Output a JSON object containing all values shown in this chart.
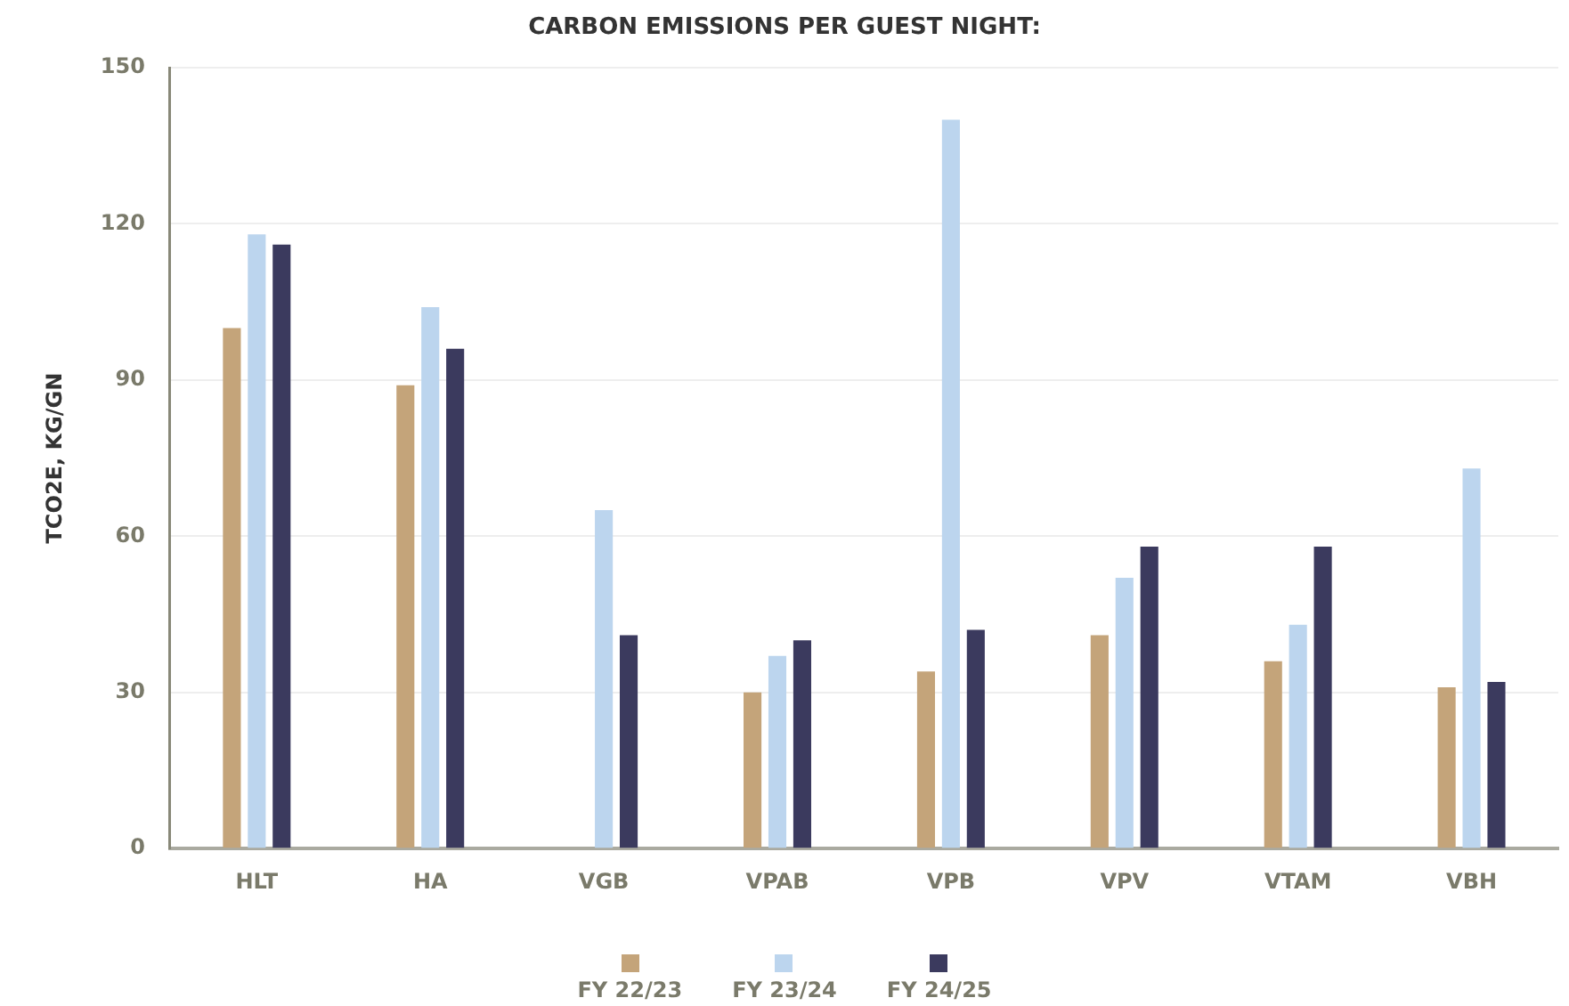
{
  "chart_data": {
    "type": "bar",
    "title": "CARBON EMISSIONS PER GUEST NIGHT:",
    "ylabel": "TCO2E, KG/GN",
    "categories": [
      "HLT",
      "HA",
      "VGB",
      "VPAB",
      "VPB",
      "VPV",
      "VTAM",
      "VBH"
    ],
    "series": [
      {
        "name": "FY 22/23",
        "color": "#c4a47a",
        "values": [
          100,
          89,
          null,
          30,
          34,
          41,
          36,
          31
        ]
      },
      {
        "name": "FY 23/24",
        "color": "#bcd5ee",
        "values": [
          118,
          104,
          65,
          37,
          140,
          52,
          43,
          73
        ]
      },
      {
        "name": "FY 24/25",
        "color": "#3b3a5e",
        "values": [
          116,
          96,
          41,
          40,
          42,
          58,
          58,
          32
        ]
      }
    ],
    "ylim": [
      0,
      150
    ],
    "yticks": [
      0,
      30,
      60,
      90,
      120,
      150
    ],
    "grid": "y",
    "legend": "bottom"
  }
}
